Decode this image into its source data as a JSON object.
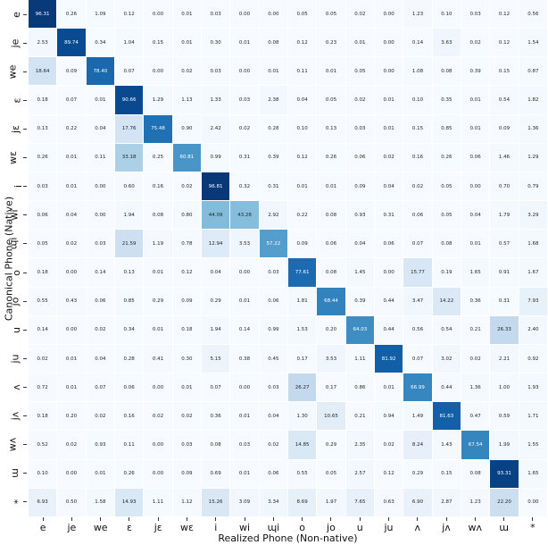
{
  "chart_data": {
    "type": "heatmap",
    "title": "",
    "xlabel": "Realized Phone (Non-native)",
    "ylabel": "Canonical Phone (Native)",
    "x_labels": [
      "e",
      "je",
      "we",
      "ɛ",
      "jɛ",
      "wɛ",
      "i",
      "wi",
      "ɰi",
      "o",
      "jo",
      "u",
      "ju",
      "ʌ",
      "jʌ",
      "wʌ",
      "ɯ",
      "*"
    ],
    "y_labels": [
      "e",
      "je",
      "we",
      "ɛ",
      "jɛ",
      "wɛ",
      "i",
      "wi",
      "ɰi",
      "o",
      "jo",
      "u",
      "ju",
      "ʌ",
      "jʌ",
      "wʌ",
      "ɯ",
      "*"
    ],
    "colormap": "Blues",
    "vmin": 0,
    "vmax": 100,
    "values": [
      [
        96.31,
        0.26,
        1.09,
        0.12,
        0.0,
        0.01,
        0.03,
        0.0,
        0.0,
        0.05,
        0.05,
        0.02,
        0.0,
        1.23,
        0.1,
        0.03,
        0.12,
        0.56
      ],
      [
        2.53,
        89.74,
        0.34,
        1.04,
        0.15,
        0.01,
        0.3,
        0.01,
        0.08,
        0.12,
        0.23,
        0.01,
        0.0,
        0.14,
        3.63,
        0.02,
        0.12,
        1.54
      ],
      [
        18.64,
        0.09,
        78.4,
        0.07,
        0.0,
        0.02,
        0.03,
        0.0,
        0.01,
        0.11,
        0.01,
        0.05,
        0.0,
        1.08,
        0.08,
        0.39,
        0.15,
        0.87
      ],
      [
        0.18,
        0.07,
        0.01,
        90.66,
        1.29,
        1.13,
        1.33,
        0.03,
        2.38,
        0.04,
        0.05,
        0.02,
        0.01,
        0.1,
        0.35,
        0.01,
        0.54,
        1.82
      ],
      [
        0.13,
        0.22,
        0.04,
        17.76,
        75.48,
        0.9,
        2.42,
        0.02,
        0.28,
        0.1,
        0.13,
        0.03,
        0.01,
        0.15,
        0.85,
        0.01,
        0.09,
        1.36
      ],
      [
        0.26,
        0.01,
        0.11,
        33.18,
        0.25,
        60.81,
        0.99,
        0.31,
        0.39,
        0.12,
        0.26,
        0.06,
        0.02,
        0.16,
        0.26,
        0.06,
        1.46,
        1.29
      ],
      [
        0.03,
        0.01,
        0.0,
        0.6,
        0.16,
        0.02,
        96.81,
        0.32,
        0.31,
        0.01,
        0.01,
        0.09,
        0.04,
        0.02,
        0.05,
        0.0,
        0.7,
        0.79
      ],
      [
        0.06,
        0.04,
        0.0,
        1.94,
        0.08,
        0.8,
        44.09,
        43.28,
        2.92,
        0.22,
        0.08,
        0.93,
        0.31,
        0.06,
        0.05,
        0.04,
        1.79,
        3.29
      ],
      [
        0.05,
        0.02,
        0.03,
        21.59,
        1.19,
        0.78,
        12.94,
        3.53,
        57.22,
        0.09,
        0.06,
        0.04,
        0.06,
        0.07,
        0.08,
        0.01,
        0.57,
        1.68
      ],
      [
        0.18,
        0.0,
        0.14,
        0.13,
        0.01,
        0.12,
        0.04,
        0.0,
        0.03,
        77.61,
        0.08,
        1.45,
        0.0,
        15.77,
        0.19,
        1.65,
        0.91,
        1.67
      ],
      [
        0.55,
        0.43,
        0.06,
        0.85,
        0.29,
        0.09,
        0.29,
        0.01,
        0.06,
        1.81,
        68.44,
        0.39,
        0.44,
        3.47,
        14.22,
        0.36,
        0.31,
        7.93
      ],
      [
        0.14,
        0.0,
        0.02,
        0.34,
        0.01,
        0.18,
        1.94,
        0.14,
        0.99,
        1.53,
        0.2,
        64.03,
        0.44,
        0.56,
        0.54,
        0.21,
        26.33,
        2.4
      ],
      [
        0.02,
        0.01,
        0.04,
        0.28,
        0.41,
        0.3,
        5.15,
        0.38,
        0.45,
        0.17,
        3.53,
        1.11,
        81.92,
        0.07,
        3.02,
        0.02,
        2.21,
        0.92
      ],
      [
        0.72,
        0.01,
        0.07,
        0.06,
        0.0,
        0.01,
        0.07,
        0.0,
        0.03,
        26.27,
        0.17,
        0.86,
        0.01,
        66.99,
        0.44,
        1.36,
        1.0,
        1.93
      ],
      [
        0.18,
        0.2,
        0.02,
        0.16,
        0.02,
        0.02,
        0.36,
        0.01,
        0.04,
        1.3,
        10.65,
        0.21,
        0.94,
        1.49,
        81.63,
        0.47,
        0.59,
        1.71
      ],
      [
        0.52,
        0.02,
        0.93,
        0.11,
        0.0,
        0.03,
        0.08,
        0.03,
        0.02,
        14.85,
        0.29,
        2.35,
        0.02,
        8.24,
        1.43,
        67.54,
        1.99,
        1.55
      ],
      [
        0.1,
        0.0,
        0.01,
        0.26,
        0.0,
        0.09,
        0.69,
        0.01,
        0.06,
        0.55,
        0.05,
        2.57,
        0.12,
        0.29,
        0.15,
        0.08,
        93.31,
        1.65
      ],
      [
        6.93,
        0.5,
        1.58,
        14.93,
        1.11,
        1.12,
        15.26,
        3.09,
        3.34,
        8.69,
        1.97,
        7.65,
        0.63,
        6.9,
        2.87,
        1.23,
        22.2,
        0.0
      ]
    ],
    "grid": false,
    "legend": "none",
    "value_format": "0.00"
  }
}
